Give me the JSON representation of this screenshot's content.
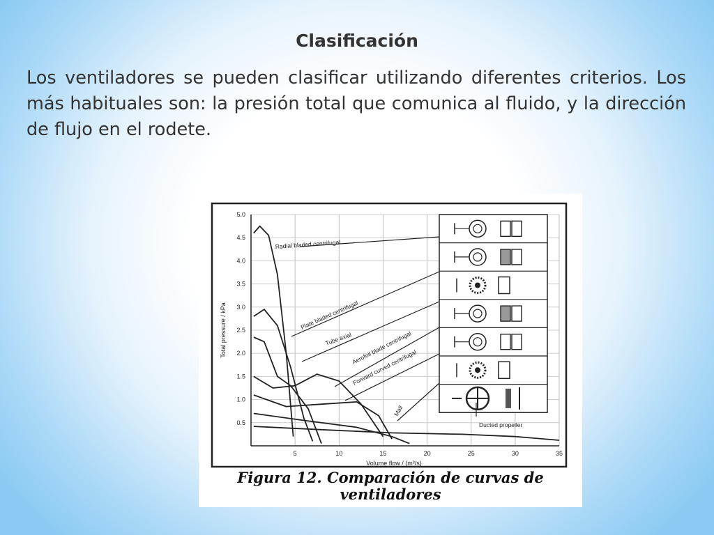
{
  "slide": {
    "title": "Clasificación",
    "body": "Los ventiladores se pueden clasificar utilizando diferentes criterios. Los más habituales son: la presión total que comunica al fluido, y la dirección de flujo en el rodete."
  },
  "figure": {
    "caption_line1": "Figura 12. Comparación de curvas de",
    "caption_line2": "ventiladores"
  },
  "chart_data": {
    "type": "line",
    "xlabel": "Volume flow / (m³/s)",
    "ylabel": "Total pressure / kPa",
    "xlim": [
      0,
      35
    ],
    "ylim": [
      0,
      5.0
    ],
    "x_ticks": [
      "5",
      "10",
      "15",
      "20",
      "25",
      "30",
      "35"
    ],
    "y_ticks": [
      "5.0",
      "4.5",
      "4.0",
      "3.5",
      "3.0",
      "2.5",
      "2.0",
      "1.5",
      "1.0",
      "0.5"
    ],
    "grid": true,
    "series": [
      {
        "name": "Radial bladed centrifugal",
        "x": [
          0.3,
          1,
          2,
          3,
          4,
          4.8
        ],
        "y": [
          4.6,
          4.75,
          4.55,
          3.7,
          2.0,
          0.2
        ]
      },
      {
        "name": "Plate bladed centrifugal",
        "x": [
          0.3,
          1.5,
          3,
          4.5,
          6,
          7
        ],
        "y": [
          2.8,
          2.95,
          2.6,
          1.7,
          0.6,
          0.1
        ]
      },
      {
        "name": "Tube axial",
        "x": [
          0.3,
          1.5,
          3,
          4.5,
          6.5,
          8
        ],
        "y": [
          2.35,
          2.25,
          1.5,
          1.3,
          0.8,
          0.05
        ]
      },
      {
        "name": "Aerofoil blade centrifugal",
        "x": [
          0.3,
          2.5,
          5,
          7.5,
          10,
          12.5,
          15
        ],
        "y": [
          1.5,
          1.25,
          1.3,
          1.55,
          1.4,
          0.9,
          0.2
        ]
      },
      {
        "name": "Forward curved centrifugal",
        "x": [
          0.3,
          4,
          8,
          12,
          14.5,
          16
        ],
        "y": [
          1.1,
          0.85,
          0.9,
          0.95,
          0.65,
          0.15
        ]
      },
      {
        "name": "Mall",
        "x": [
          0.3,
          6,
          12,
          16,
          18
        ],
        "y": [
          0.7,
          0.55,
          0.4,
          0.2,
          0.05
        ]
      },
      {
        "name": "Ducted propeller",
        "x": [
          0.3,
          8,
          16,
          24,
          30,
          35
        ],
        "y": [
          0.42,
          0.35,
          0.28,
          0.25,
          0.2,
          0.12
        ]
      }
    ],
    "annotations": [
      "Radial bladed centrifugal",
      "Plate bladed centrifugal",
      "Tube axial",
      "Aerofoil blade centrifugal",
      "Forward curved centrifugal",
      "Mall",
      "Ducted propeller"
    ]
  }
}
